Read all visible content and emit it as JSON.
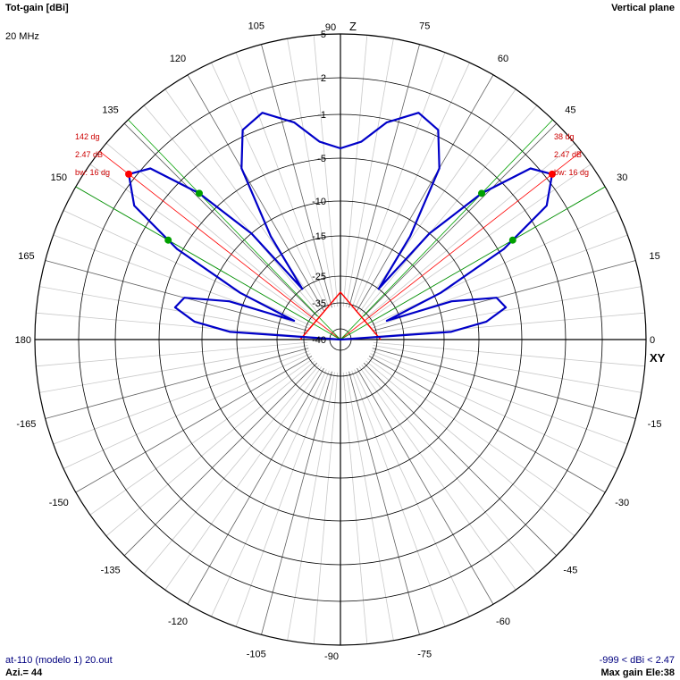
{
  "header": {
    "title": "Tot-gain [dBi]",
    "frequency": "20 MHz",
    "plane": "Vertical plane"
  },
  "footer": {
    "file": "at-110 (modelo 1) 20.out",
    "azimuth": "Azi.= 44",
    "range": "-999 < dBi < 2.47",
    "max_gain": "Max gain Ele:38"
  },
  "axis_labels": {
    "vertical": "Z",
    "horizontal": "XY"
  },
  "markers": {
    "left": [
      "142 dg",
      "2.47 dB",
      "bw: 16 dg"
    ],
    "right": [
      "38 dg",
      "2.47 dB",
      "bw: 16 dg"
    ]
  },
  "colors": {
    "pattern": "#0000c8",
    "grid": "#c8c8c8",
    "grid_major": "#000000",
    "marker_red": "#ff0000",
    "marker_green": "#00a000",
    "text_red": "#cc0000",
    "footer_text": "#00007f"
  },
  "chart_data": {
    "type": "polar",
    "angle_ticks": [
      0,
      15,
      30,
      45,
      60,
      75,
      90,
      105,
      120,
      135,
      150,
      165,
      180,
      -165,
      -150,
      -135,
      -120,
      -105,
      -90,
      -75,
      -60,
      -45,
      -30,
      -15
    ],
    "radial_ticks": [
      5,
      2,
      -1,
      -5,
      -10,
      -15,
      -25,
      -35,
      -40
    ],
    "max_gain_dBi": 2.47,
    "max_gain_elevation_deg": 38,
    "beamwidth_deg": 16,
    "series": [
      {
        "type": "line",
        "points": [
          {
            "angle": 0,
            "gain_dBi": -40
          },
          {
            "angle": 4,
            "gain_dBi": -14
          },
          {
            "angle": 7,
            "gain_dBi": -9
          },
          {
            "angle": 11,
            "gain_dBi": -6.5
          },
          {
            "angle": 15,
            "gain_dBi": -7.3
          },
          {
            "angle": 19,
            "gain_dBi": -13
          },
          {
            "angle": 22,
            "gain_dBi": -30
          },
          {
            "angle": 25,
            "gain_dBi": -14
          },
          {
            "angle": 29,
            "gain_dBi": -4.5
          },
          {
            "angle": 33,
            "gain_dBi": 0.7
          },
          {
            "angle": 38,
            "gain_dBi": 2.47
          },
          {
            "angle": 42,
            "gain_dBi": 1.5
          },
          {
            "angle": 46,
            "gain_dBi": -3
          },
          {
            "angle": 50,
            "gain_dBi": -10
          },
          {
            "angle": 53,
            "gain_dBi": -25
          },
          {
            "angle": 56,
            "gain_dBi": -12
          },
          {
            "angle": 60,
            "gain_dBi": -3.5
          },
          {
            "angle": 65,
            "gain_dBi": -0.5
          },
          {
            "angle": 71,
            "gain_dBi": 0.2
          },
          {
            "angle": 78,
            "gain_dBi": -1.3
          },
          {
            "angle": 84,
            "gain_dBi": -3.4
          },
          {
            "angle": 90,
            "gain_dBi": -4.1
          }
        ]
      }
    ]
  }
}
